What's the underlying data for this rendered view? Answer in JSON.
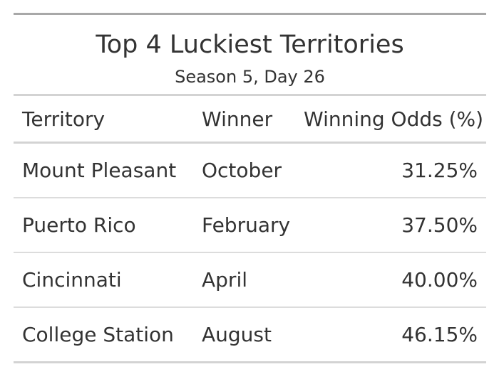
{
  "title": "Top 4 Luckiest Territories",
  "subtitle": "Season 5, Day 26",
  "columns": [
    "Territory",
    "Winner",
    "Winning Odds (%)"
  ],
  "rows": [
    {
      "territory": "Mount Pleasant",
      "winner": "October",
      "odds": "31.25%"
    },
    {
      "territory": "Puerto Rico",
      "winner": "February",
      "odds": "37.50%"
    },
    {
      "territory": "Cincinnati",
      "winner": "April",
      "odds": "40.00%"
    },
    {
      "territory": "College Station",
      "winner": "August",
      "odds": "46.15%"
    }
  ]
}
